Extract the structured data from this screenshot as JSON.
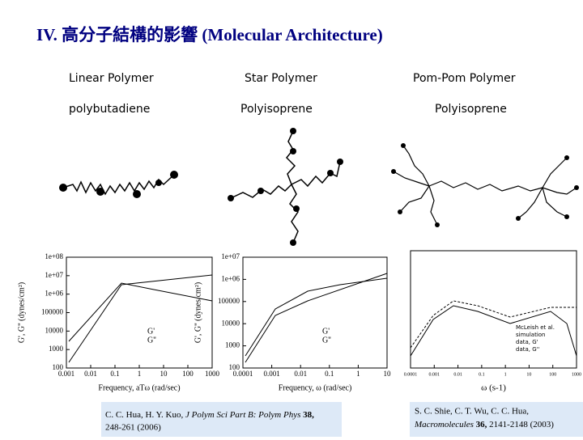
{
  "title": "IV. 高分子結構的影響 (Molecular Architecture)",
  "columns": [
    {
      "name": "Linear Polymer",
      "material": "polybutadiene"
    },
    {
      "name": "Star Polymer",
      "material": "Polyisoprene"
    },
    {
      "name": "Pom-Pom Polymer",
      "material": "Polyisoprene"
    }
  ],
  "plots": [
    {
      "y_label": "G', G'' (dynes/cm²)",
      "x_label": "Frequency, aTω (rad/sec)",
      "xticks": [
        "0.001",
        "0.01",
        "0.1",
        "1",
        "10",
        "100",
        "1000"
      ],
      "yticks": [
        "1e+08",
        "1e+07",
        "1e+06",
        "100000",
        "10000",
        "1000",
        "100"
      ],
      "legend": [
        "G'",
        "G''"
      ]
    },
    {
      "y_label": "G', G'' (dynes/cm²)",
      "x_label": "Frequency, ω (rad/sec)",
      "xticks": [
        "0.0001",
        "0.001",
        "0.01",
        "0.1",
        "1",
        "10"
      ],
      "yticks": [
        "1e+07",
        "1e+06",
        "100000",
        "10000",
        "1000",
        "100"
      ],
      "legend": [
        "G'",
        "G''"
      ]
    },
    {
      "x_label": "ω (s-1)",
      "xticks": [
        "0.0001",
        "0.001",
        "0.01",
        "0.1",
        "1",
        "10",
        "100",
        "1000"
      ],
      "legend": [
        "McLeish et al.",
        "simulation",
        "data, G'",
        "data, G''"
      ]
    }
  ],
  "citations": [
    {
      "authors": "C. C. Hua, H. Y. Kuo,",
      "journal": "J Polym Sci Part B: Polym Phys",
      "volume": "38,",
      "pages": "248-261 (2006)"
    },
    {
      "authors": "S. C. Shie, C. T. Wu, C. C. Hua,",
      "journal": "Macromolecules",
      "volume": "36,",
      "pages": "2141-2148 (2003)"
    }
  ]
}
